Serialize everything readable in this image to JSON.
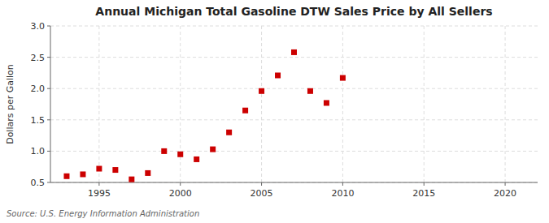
{
  "chart_data": {
    "type": "scatter",
    "title": "Annual Michigan Total Gasoline DTW Sales Price by All Sellers",
    "ylabel": "Dollars per Gallon",
    "source": "Source: U.S. Energy Information Administration",
    "x": [
      1993,
      1994,
      1995,
      1996,
      1997,
      1998,
      1999,
      2000,
      2001,
      2002,
      2003,
      2004,
      2005,
      2006,
      2007,
      2008,
      2009,
      2010
    ],
    "values": [
      0.6,
      0.63,
      0.72,
      0.7,
      0.55,
      0.65,
      1.0,
      0.95,
      0.87,
      1.03,
      1.3,
      1.65,
      1.96,
      2.21,
      2.58,
      1.96,
      1.77,
      2.17
    ],
    "color": "#cc0000",
    "marker": "square",
    "xlim": [
      1992,
      2022
    ],
    "ylim": [
      0.5,
      3.0
    ],
    "xticks": [
      1995,
      2000,
      2005,
      2010,
      2015,
      2020
    ],
    "yticks": [
      0.5,
      {
        "value": 1.0,
        "label": "1.0"
      },
      1.5,
      {
        "value": 2.0,
        "label": "2.0"
      },
      2.5,
      {
        "value": 3.0,
        "label": "3.0"
      }
    ],
    "grid": true
  }
}
